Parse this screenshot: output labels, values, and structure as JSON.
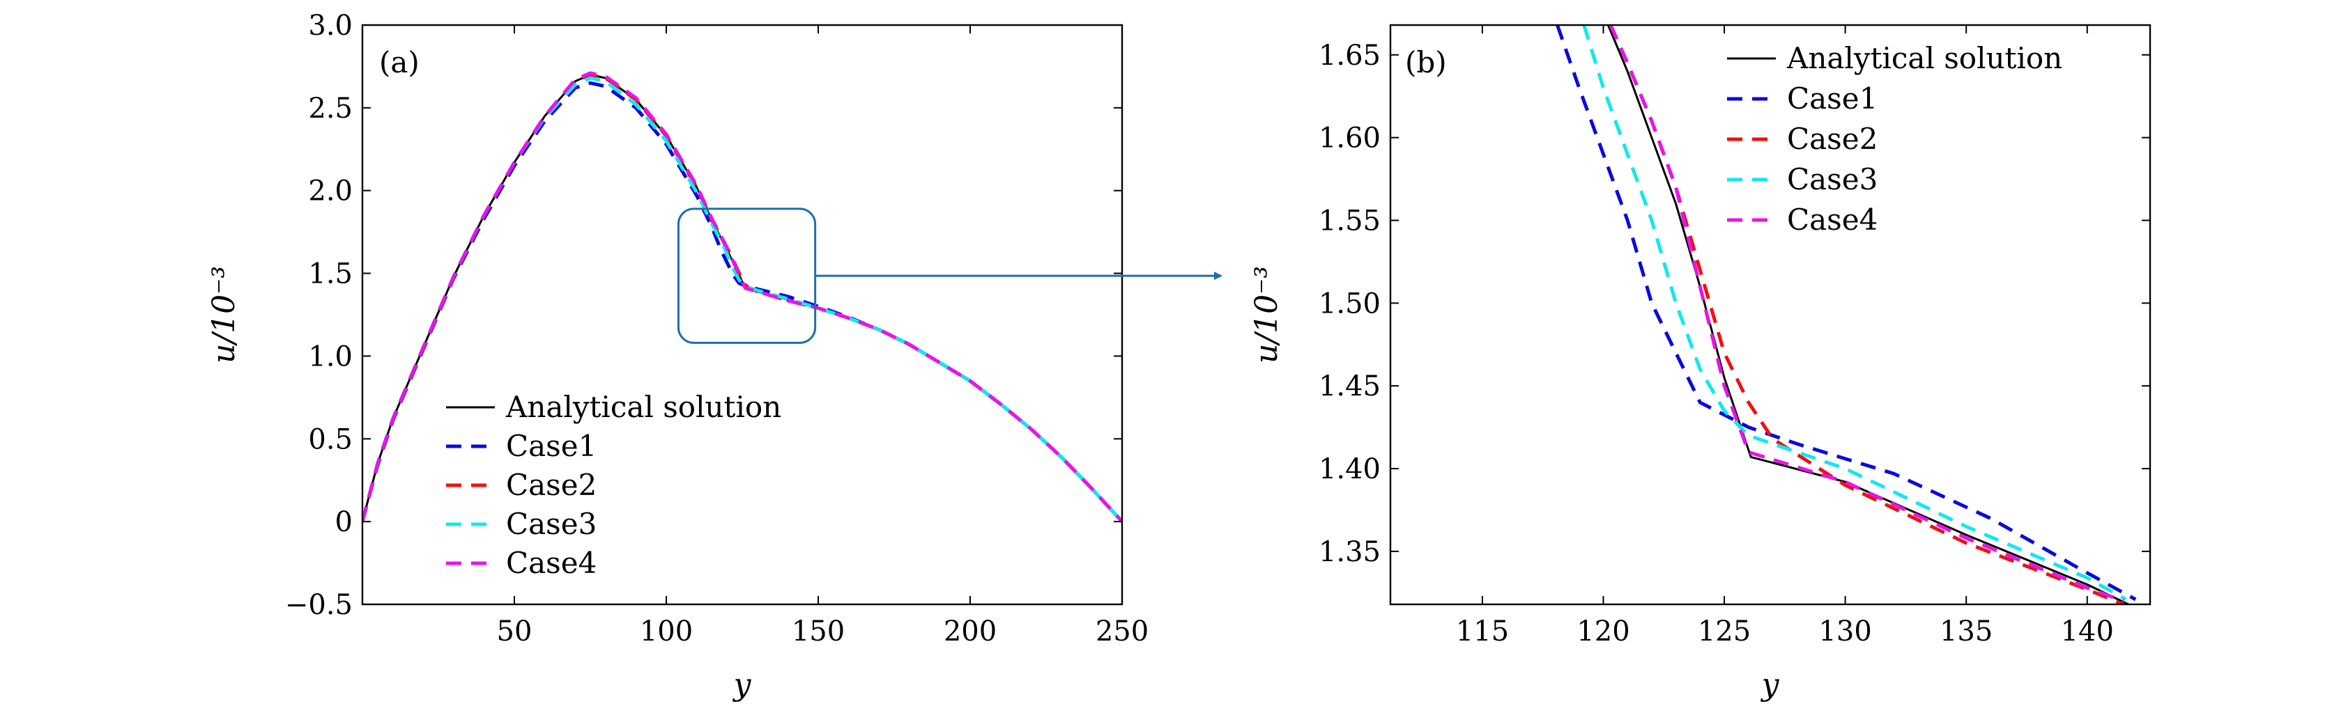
{
  "chart_data": [
    {
      "type": "line",
      "panel_label": "(a)",
      "xlabel": "y",
      "ylabel": "u/10⁻³",
      "xlim": [
        0,
        250
      ],
      "ylim": [
        -0.5,
        3.0
      ],
      "xticks": [
        50,
        100,
        150,
        200,
        250
      ],
      "xtick_labels": [
        "50",
        "100",
        "150",
        "200",
        "250"
      ],
      "yticks": [
        -0.5,
        0,
        0.5,
        1.0,
        1.5,
        2.0,
        2.5,
        3.0
      ],
      "ytick_labels": [
        "−0.5",
        "0",
        "0.5",
        "1.0",
        "1.5",
        "2.0",
        "2.5",
        "3.0"
      ],
      "legend_position": "lower-left",
      "zoom_box": {
        "x": [
          104,
          149
        ],
        "y": [
          1.08,
          1.89
        ]
      },
      "series": [
        {
          "name": "Analytical solution",
          "color": "#000000",
          "dash": "solid",
          "points": [
            [
              0,
              0
            ],
            [
              5,
              0.35
            ],
            [
              10,
              0.62
            ],
            [
              20,
              1.05
            ],
            [
              30,
              1.48
            ],
            [
              40,
              1.85
            ],
            [
              50,
              2.17
            ],
            [
              60,
              2.45
            ],
            [
              70,
              2.66
            ],
            [
              75,
              2.7
            ],
            [
              80,
              2.68
            ],
            [
              90,
              2.55
            ],
            [
              100,
              2.33
            ],
            [
              110,
              2.02
            ],
            [
              115,
              1.82
            ],
            [
              120,
              1.64
            ],
            [
              123,
              1.53
            ],
            [
              126,
              1.407
            ],
            [
              130,
              1.39
            ],
            [
              140,
              1.34
            ],
            [
              150,
              1.29
            ],
            [
              160,
              1.23
            ],
            [
              170,
              1.16
            ],
            [
              180,
              1.07
            ],
            [
              190,
              0.96
            ],
            [
              200,
              0.85
            ],
            [
              210,
              0.71
            ],
            [
              220,
              0.56
            ],
            [
              230,
              0.39
            ],
            [
              240,
              0.2
            ],
            [
              250,
              0.0
            ]
          ]
        },
        {
          "name": "Case1",
          "color": "#0a0adc",
          "dash": "dashed",
          "points": [
            [
              0,
              0
            ],
            [
              5,
              0.34
            ],
            [
              10,
              0.61
            ],
            [
              20,
              1.04
            ],
            [
              30,
              1.47
            ],
            [
              40,
              1.83
            ],
            [
              50,
              2.15
            ],
            [
              60,
              2.42
            ],
            [
              70,
              2.62
            ],
            [
              75,
              2.65
            ],
            [
              80,
              2.63
            ],
            [
              90,
              2.5
            ],
            [
              100,
              2.28
            ],
            [
              110,
              1.97
            ],
            [
              115,
              1.78
            ],
            [
              118,
              1.64
            ],
            [
              122,
              1.49
            ],
            [
              124,
              1.44
            ],
            [
              126,
              1.425
            ],
            [
              130,
              1.405
            ],
            [
              140,
              1.36
            ],
            [
              150,
              1.3
            ],
            [
              160,
              1.235
            ],
            [
              170,
              1.16
            ],
            [
              180,
              1.07
            ],
            [
              190,
              0.96
            ],
            [
              200,
              0.85
            ],
            [
              210,
              0.71
            ],
            [
              220,
              0.56
            ],
            [
              230,
              0.39
            ],
            [
              240,
              0.2
            ],
            [
              250,
              0.0
            ]
          ]
        },
        {
          "name": "Case2",
          "color": "#ee1111",
          "dash": "dashed",
          "points": [
            [
              0,
              0
            ],
            [
              5,
              0.35
            ],
            [
              10,
              0.62
            ],
            [
              20,
              1.05
            ],
            [
              30,
              1.48
            ],
            [
              40,
              1.85
            ],
            [
              50,
              2.17
            ],
            [
              60,
              2.45
            ],
            [
              70,
              2.66
            ],
            [
              75,
              2.7
            ],
            [
              80,
              2.68
            ],
            [
              90,
              2.55
            ],
            [
              100,
              2.33
            ],
            [
              110,
              2.02
            ],
            [
              115,
              1.82
            ],
            [
              120,
              1.655
            ],
            [
              123,
              1.54
            ],
            [
              125,
              1.46
            ],
            [
              126,
              1.43
            ],
            [
              127,
              1.415
            ],
            [
              130,
              1.39
            ],
            [
              140,
              1.335
            ],
            [
              150,
              1.29
            ],
            [
              160,
              1.23
            ],
            [
              170,
              1.16
            ],
            [
              180,
              1.07
            ],
            [
              190,
              0.96
            ],
            [
              200,
              0.85
            ],
            [
              210,
              0.71
            ],
            [
              220,
              0.56
            ],
            [
              230,
              0.39
            ],
            [
              240,
              0.2
            ],
            [
              250,
              0.0
            ]
          ]
        },
        {
          "name": "Case3",
          "color": "#11e8ee",
          "dash": "dashed",
          "points": [
            [
              0,
              0
            ],
            [
              5,
              0.35
            ],
            [
              10,
              0.62
            ],
            [
              20,
              1.05
            ],
            [
              30,
              1.48
            ],
            [
              40,
              1.85
            ],
            [
              50,
              2.17
            ],
            [
              60,
              2.44
            ],
            [
              70,
              2.64
            ],
            [
              75,
              2.68
            ],
            [
              80,
              2.66
            ],
            [
              90,
              2.52
            ],
            [
              100,
              2.3
            ],
            [
              110,
              1.99
            ],
            [
              115,
              1.8
            ],
            [
              119,
              1.66
            ],
            [
              122,
              1.53
            ],
            [
              124,
              1.46
            ],
            [
              126,
              1.42
            ],
            [
              130,
              1.397
            ],
            [
              140,
              1.345
            ],
            [
              150,
              1.29
            ],
            [
              160,
              1.23
            ],
            [
              170,
              1.16
            ],
            [
              180,
              1.07
            ],
            [
              190,
              0.96
            ],
            [
              200,
              0.85
            ],
            [
              210,
              0.71
            ],
            [
              220,
              0.56
            ],
            [
              230,
              0.39
            ],
            [
              240,
              0.2
            ],
            [
              250,
              0.0
            ]
          ]
        },
        {
          "name": "Case4",
          "color": "#e814e8",
          "dash": "dashed",
          "points": [
            [
              0,
              0
            ],
            [
              5,
              0.35
            ],
            [
              10,
              0.62
            ],
            [
              20,
              1.05
            ],
            [
              30,
              1.48
            ],
            [
              40,
              1.85
            ],
            [
              50,
              2.17
            ],
            [
              60,
              2.45
            ],
            [
              70,
              2.67
            ],
            [
              75,
              2.71
            ],
            [
              80,
              2.69
            ],
            [
              90,
              2.56
            ],
            [
              100,
              2.34
            ],
            [
              110,
              2.03
            ],
            [
              115,
              1.83
            ],
            [
              120,
              1.655
            ],
            [
              123,
              1.53
            ],
            [
              125,
              1.45
            ],
            [
              126,
              1.41
            ],
            [
              130,
              1.39
            ],
            [
              140,
              1.335
            ],
            [
              150,
              1.29
            ],
            [
              160,
              1.23
            ],
            [
              170,
              1.16
            ],
            [
              180,
              1.07
            ],
            [
              190,
              0.96
            ],
            [
              200,
              0.85
            ],
            [
              210,
              0.71
            ],
            [
              220,
              0.56
            ],
            [
              230,
              0.39
            ],
            [
              240,
              0.2
            ],
            [
              250,
              0.0
            ]
          ]
        }
      ]
    },
    {
      "type": "line",
      "panel_label": "(b)",
      "xlabel": "y",
      "ylabel": "u/10⁻³",
      "xlim": [
        111.2,
        142.6
      ],
      "ylim": [
        1.318,
        1.668
      ],
      "xticks": [
        115,
        120,
        125,
        130,
        135,
        140
      ],
      "xtick_labels": [
        "115",
        "120",
        "125",
        "130",
        "135",
        "140"
      ],
      "yticks": [
        1.35,
        1.4,
        1.45,
        1.5,
        1.55,
        1.6,
        1.65
      ],
      "ytick_labels": [
        "1.35",
        "1.40",
        "1.45",
        "1.50",
        "1.55",
        "1.60",
        "1.65"
      ],
      "legend_position": "top-right",
      "series": [
        {
          "name": "Analytical solution",
          "color": "#000000",
          "dash": "solid",
          "points": [
            [
              120.2,
              1.668
            ],
            [
              121,
              1.64
            ],
            [
              122,
              1.6
            ],
            [
              123,
              1.56
            ],
            [
              124,
              1.51
            ],
            [
              125,
              1.455
            ],
            [
              126.1,
              1.407
            ],
            [
              130,
              1.392
            ],
            [
              135,
              1.36
            ],
            [
              140,
              1.33
            ],
            [
              141.7,
              1.318
            ]
          ]
        },
        {
          "name": "Case1",
          "color": "#0a0adc",
          "dash": "dashed",
          "points": [
            [
              118.1,
              1.668
            ],
            [
              119,
              1.63
            ],
            [
              120,
              1.59
            ],
            [
              121,
              1.55
            ],
            [
              122,
              1.5
            ],
            [
              123,
              1.47
            ],
            [
              124,
              1.44
            ],
            [
              126,
              1.425
            ],
            [
              128,
              1.415
            ],
            [
              132,
              1.397
            ],
            [
              136,
              1.37
            ],
            [
              140,
              1.337
            ],
            [
              142,
              1.321
            ]
          ]
        },
        {
          "name": "Case2",
          "color": "#ee1111",
          "dash": "dashed",
          "points": [
            [
              120.3,
              1.668
            ],
            [
              121,
              1.645
            ],
            [
              122,
              1.61
            ],
            [
              123,
              1.57
            ],
            [
              124,
              1.52
            ],
            [
              125,
              1.47
            ],
            [
              126,
              1.44
            ],
            [
              127,
              1.418
            ],
            [
              130,
              1.39
            ],
            [
              135,
              1.355
            ],
            [
              140,
              1.327
            ],
            [
              141.5,
              1.318
            ]
          ]
        },
        {
          "name": "Case3",
          "color": "#11e8ee",
          "dash": "dashed",
          "points": [
            [
              119.2,
              1.668
            ],
            [
              120,
              1.63
            ],
            [
              121,
              1.59
            ],
            [
              122,
              1.55
            ],
            [
              123,
              1.5
            ],
            [
              124,
              1.46
            ],
            [
              125,
              1.435
            ],
            [
              126,
              1.42
            ],
            [
              130,
              1.4
            ],
            [
              135,
              1.365
            ],
            [
              140,
              1.334
            ],
            [
              141.6,
              1.321
            ]
          ]
        },
        {
          "name": "Case4",
          "color": "#e814e8",
          "dash": "dashed",
          "points": [
            [
              120.3,
              1.668
            ],
            [
              121,
              1.645
            ],
            [
              122,
              1.61
            ],
            [
              123,
              1.57
            ],
            [
              124,
              1.51
            ],
            [
              125,
              1.45
            ],
            [
              126,
              1.41
            ],
            [
              130,
              1.392
            ],
            [
              135,
              1.358
            ],
            [
              140,
              1.328
            ],
            [
              141.5,
              1.32
            ]
          ]
        }
      ]
    }
  ]
}
